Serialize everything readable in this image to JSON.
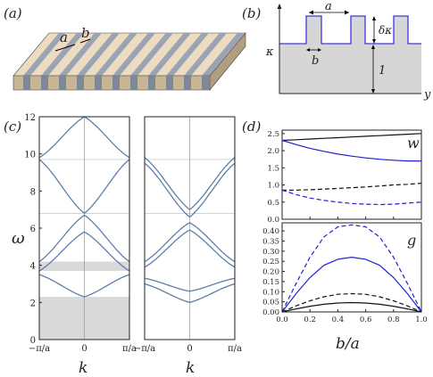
{
  "panel_labels": {
    "a": "(a)",
    "b": "(b)",
    "c": "(c)",
    "d": "(d)"
  },
  "panel_a": {
    "label_a": "a",
    "label_b": "b"
  },
  "panel_b": {
    "label_a": "a",
    "label_b": "b",
    "label_dk": "δκ",
    "label_kappa": "κ",
    "label_one": "1",
    "label_y": "y"
  },
  "panel_c": {
    "ylabel": "ω",
    "xlabel_left": "k",
    "xlabel_right": "k",
    "yticks": [
      "0",
      "2",
      "4",
      "6",
      "8",
      "10",
      "12"
    ],
    "xtick_left": "−π/a",
    "xtick_mid": "0",
    "xtick_right": "π/a",
    "gaps": [
      [
        0,
        2.3
      ],
      [
        3.7,
        4.2
      ]
    ]
  },
  "panel_d": {
    "xlabel": "b/a",
    "top_label": "w",
    "bottom_label": "g",
    "top_yticks": [
      "0.0",
      "0.5",
      "1.0",
      "1.5",
      "2.0",
      "2.5"
    ],
    "bottom_yticks": [
      "0.00",
      "0.05",
      "0.10",
      "0.15",
      "0.20",
      "0.25",
      "0.30",
      "0.35",
      "0.40"
    ],
    "xticks": [
      "0.0",
      "0.2",
      "0.4",
      "0.6",
      "0.8",
      "1.0"
    ],
    "colors": {
      "black": "#111111",
      "blue": "#1f1fd6",
      "band": "#5b7fab",
      "gap": "#d9d9d9"
    }
  },
  "chart_data": [
    {
      "type": "line",
      "panel": "(c) left",
      "xlabel": "k",
      "ylabel": "ω",
      "ylim": [
        0,
        12
      ],
      "x": [
        -1,
        0,
        1
      ],
      "series": [
        {
          "values": [
            3.5,
            2.3,
            3.5
          ]
        },
        {
          "values": [
            3.7,
            5.8,
            3.7
          ]
        },
        {
          "values": [
            4.2,
            6.7,
            4.2
          ]
        },
        {
          "values": [
            9.7,
            6.8,
            9.7
          ]
        },
        {
          "values": [
            9.8,
            12,
            9.8
          ]
        }
      ],
      "gaps": [
        [
          0,
          2.3
        ],
        [
          3.7,
          4.2
        ]
      ]
    },
    {
      "type": "line",
      "panel": "(c) right",
      "xlabel": "k",
      "ylim": [
        0,
        12
      ],
      "x": [
        -1,
        0,
        1
      ],
      "series": [
        {
          "values": [
            3.0,
            2.0,
            3.0
          ]
        },
        {
          "values": [
            3.3,
            2.6,
            3.3
          ]
        },
        {
          "values": [
            3.9,
            5.9,
            3.9
          ]
        },
        {
          "values": [
            4.2,
            6.3,
            4.2
          ]
        },
        {
          "values": [
            9.5,
            6.6,
            9.5
          ]
        },
        {
          "values": [
            9.8,
            7.0,
            9.8
          ]
        }
      ]
    },
    {
      "type": "line",
      "panel": "(d) top",
      "xlabel": "b/a",
      "ylim": [
        0,
        2.6
      ],
      "xlim": [
        0,
        1
      ],
      "x": [
        0,
        0.1,
        0.2,
        0.3,
        0.4,
        0.5,
        0.6,
        0.7,
        0.8,
        0.9,
        1.0
      ],
      "series": [
        {
          "color": "black",
          "dash": false,
          "values": [
            2.3,
            2.32,
            2.34,
            2.36,
            2.38,
            2.4,
            2.42,
            2.44,
            2.46,
            2.48,
            2.5
          ]
        },
        {
          "color": "blue",
          "dash": false,
          "values": [
            2.3,
            2.18,
            2.07,
            1.98,
            1.9,
            1.84,
            1.79,
            1.75,
            1.72,
            1.7,
            1.7
          ]
        },
        {
          "color": "black",
          "dash": true,
          "values": [
            0.85,
            0.85,
            0.86,
            0.88,
            0.9,
            0.92,
            0.94,
            0.97,
            1.0,
            1.02,
            1.05
          ]
        },
        {
          "color": "blue",
          "dash": true,
          "values": [
            0.85,
            0.72,
            0.62,
            0.55,
            0.5,
            0.46,
            0.44,
            0.43,
            0.44,
            0.47,
            0.5
          ]
        }
      ]
    },
    {
      "type": "line",
      "panel": "(d) bottom",
      "xlabel": "b/a",
      "ylim": [
        0,
        0.44
      ],
      "xlim": [
        0,
        1
      ],
      "x": [
        0,
        0.1,
        0.2,
        0.3,
        0.4,
        0.5,
        0.6,
        0.7,
        0.8,
        0.9,
        1.0
      ],
      "series": [
        {
          "color": "blue",
          "dash": true,
          "values": [
            0,
            0.14,
            0.27,
            0.37,
            0.42,
            0.43,
            0.42,
            0.37,
            0.27,
            0.14,
            0
          ]
        },
        {
          "color": "blue",
          "dash": false,
          "values": [
            0,
            0.09,
            0.17,
            0.23,
            0.26,
            0.27,
            0.26,
            0.23,
            0.17,
            0.09,
            0
          ]
        },
        {
          "color": "black",
          "dash": true,
          "values": [
            0,
            0.03,
            0.055,
            0.075,
            0.087,
            0.09,
            0.087,
            0.075,
            0.055,
            0.03,
            0
          ]
        },
        {
          "color": "black",
          "dash": false,
          "values": [
            0,
            0.015,
            0.028,
            0.038,
            0.044,
            0.046,
            0.044,
            0.038,
            0.028,
            0.015,
            0
          ]
        }
      ]
    }
  ]
}
